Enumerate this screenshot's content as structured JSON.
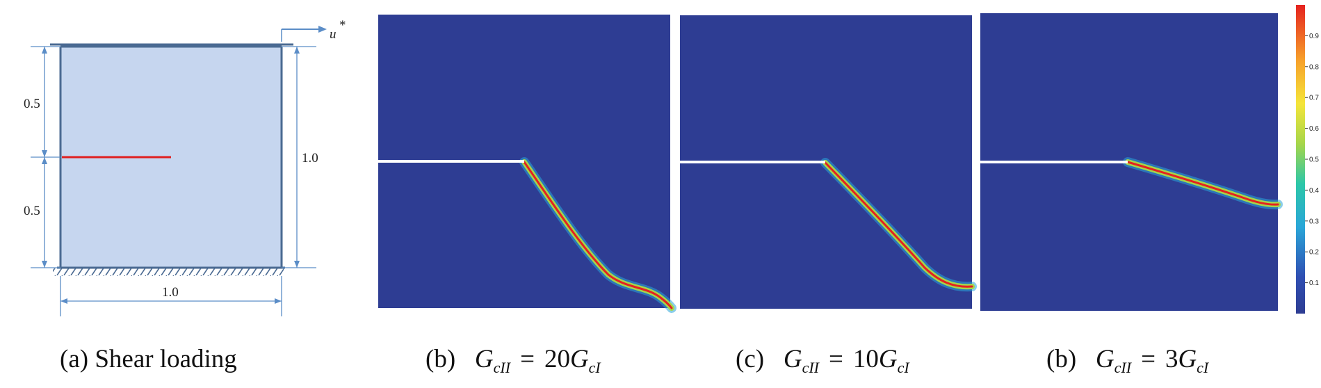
{
  "panel_a": {
    "caption": "(a) Shear loading",
    "dim_upper": "0.5",
    "dim_lower": "0.5",
    "dim_height": "1.0",
    "dim_width": "1.0",
    "load_label": "u",
    "load_superscript": "*"
  },
  "panels": [
    {
      "caption_prefix": "(b)",
      "lhs": "G",
      "lhs_sub": "cII",
      "eq": "=",
      "rhs_coef": "20",
      "rhs": "G",
      "rhs_sub": "cI"
    },
    {
      "caption_prefix": "(c)",
      "lhs": "G",
      "lhs_sub": "cII",
      "eq": "=",
      "rhs_coef": "10",
      "rhs": "G",
      "rhs_sub": "cI"
    },
    {
      "caption_prefix": "(b)",
      "lhs": "G",
      "lhs_sub": "cII",
      "eq": "=",
      "rhs_coef": "3",
      "rhs": "G",
      "rhs_sub": "cI"
    }
  ],
  "colorbar": {
    "ticks": [
      "0.9",
      "0.8",
      "0.7",
      "0.6",
      "0.5",
      "0.4",
      "0.3",
      "0.2",
      "0.1"
    ],
    "colors": [
      "#2e3d93",
      "#2aa6d8",
      "#2cc7a8",
      "#a6d64a",
      "#f5e53a",
      "#f7a12b",
      "#e5221f"
    ]
  },
  "colors": {
    "specimen_fill": "#c6d6ef",
    "specimen_edge": "#4a6a92",
    "dimension": "#5b8dc7",
    "initial_crack": "#e02020",
    "field_background": "#2e3d93"
  }
}
